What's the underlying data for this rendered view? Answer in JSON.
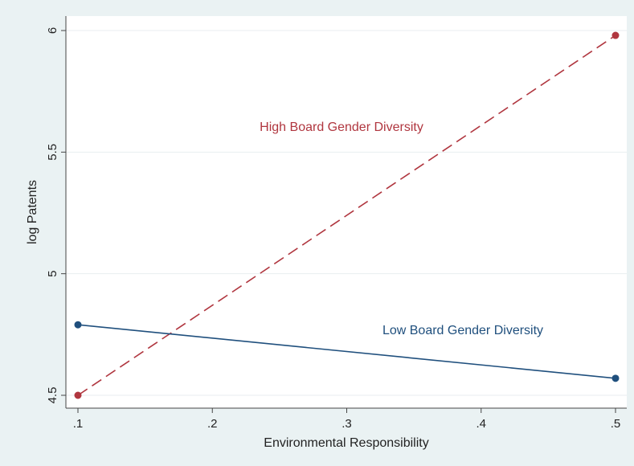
{
  "chart_data": {
    "type": "line",
    "title": "",
    "xlabel": "Environmental Responsibility",
    "ylabel": "log Patents",
    "xlim": [
      0.1,
      0.5
    ],
    "ylim": [
      4.5,
      6.0
    ],
    "x_ticks": [
      0.1,
      0.2,
      0.3,
      0.4,
      0.5
    ],
    "x_tick_labels": [
      ".1",
      ".2",
      ".3",
      ".4",
      ".5"
    ],
    "y_ticks": [
      4.5,
      5.0,
      5.5,
      6.0
    ],
    "y_tick_labels": [
      "4.5",
      "5",
      "5.5",
      "6"
    ],
    "grid": true,
    "legend": "none",
    "series": [
      {
        "id": "high",
        "label": "High Board Gender Diversity",
        "color": "#b0363f",
        "line_style": "dashed",
        "points": [
          {
            "x": 0.1,
            "y": 4.5
          },
          {
            "x": 0.5,
            "y": 5.98
          }
        ]
      },
      {
        "id": "low",
        "label": "Low Board Gender Diversity",
        "color": "#1f4f7d",
        "line_style": "solid",
        "points": [
          {
            "x": 0.1,
            "y": 4.79
          },
          {
            "x": 0.5,
            "y": 4.57
          }
        ]
      }
    ]
  }
}
